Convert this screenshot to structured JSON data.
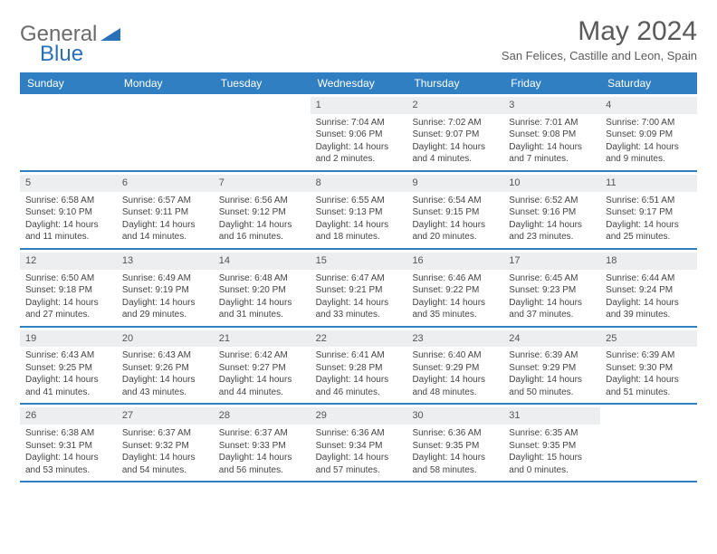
{
  "logo": {
    "part1": "General",
    "part2": "Blue"
  },
  "title": "May 2024",
  "location": "San Felices, Castille and Leon, Spain",
  "dayHeaders": [
    "Sunday",
    "Monday",
    "Tuesday",
    "Wednesday",
    "Thursday",
    "Friday",
    "Saturday"
  ],
  "colors": {
    "headerBg": "#2f7fc2",
    "headerText": "#ffffff",
    "rule": "#2f7fc2",
    "dayBg": "#eceeef",
    "logoGray": "#6b6b6b",
    "logoBlue": "#2870b8"
  },
  "weeks": [
    [
      {
        "empty": true
      },
      {
        "empty": true
      },
      {
        "empty": true
      },
      {
        "num": "1",
        "sunrise": "Sunrise: 7:04 AM",
        "sunset": "Sunset: 9:06 PM",
        "daylight": "Daylight: 14 hours and 2 minutes."
      },
      {
        "num": "2",
        "sunrise": "Sunrise: 7:02 AM",
        "sunset": "Sunset: 9:07 PM",
        "daylight": "Daylight: 14 hours and 4 minutes."
      },
      {
        "num": "3",
        "sunrise": "Sunrise: 7:01 AM",
        "sunset": "Sunset: 9:08 PM",
        "daylight": "Daylight: 14 hours and 7 minutes."
      },
      {
        "num": "4",
        "sunrise": "Sunrise: 7:00 AM",
        "sunset": "Sunset: 9:09 PM",
        "daylight": "Daylight: 14 hours and 9 minutes."
      }
    ],
    [
      {
        "num": "5",
        "sunrise": "Sunrise: 6:58 AM",
        "sunset": "Sunset: 9:10 PM",
        "daylight": "Daylight: 14 hours and 11 minutes."
      },
      {
        "num": "6",
        "sunrise": "Sunrise: 6:57 AM",
        "sunset": "Sunset: 9:11 PM",
        "daylight": "Daylight: 14 hours and 14 minutes."
      },
      {
        "num": "7",
        "sunrise": "Sunrise: 6:56 AM",
        "sunset": "Sunset: 9:12 PM",
        "daylight": "Daylight: 14 hours and 16 minutes."
      },
      {
        "num": "8",
        "sunrise": "Sunrise: 6:55 AM",
        "sunset": "Sunset: 9:13 PM",
        "daylight": "Daylight: 14 hours and 18 minutes."
      },
      {
        "num": "9",
        "sunrise": "Sunrise: 6:54 AM",
        "sunset": "Sunset: 9:15 PM",
        "daylight": "Daylight: 14 hours and 20 minutes."
      },
      {
        "num": "10",
        "sunrise": "Sunrise: 6:52 AM",
        "sunset": "Sunset: 9:16 PM",
        "daylight": "Daylight: 14 hours and 23 minutes."
      },
      {
        "num": "11",
        "sunrise": "Sunrise: 6:51 AM",
        "sunset": "Sunset: 9:17 PM",
        "daylight": "Daylight: 14 hours and 25 minutes."
      }
    ],
    [
      {
        "num": "12",
        "sunrise": "Sunrise: 6:50 AM",
        "sunset": "Sunset: 9:18 PM",
        "daylight": "Daylight: 14 hours and 27 minutes."
      },
      {
        "num": "13",
        "sunrise": "Sunrise: 6:49 AM",
        "sunset": "Sunset: 9:19 PM",
        "daylight": "Daylight: 14 hours and 29 minutes."
      },
      {
        "num": "14",
        "sunrise": "Sunrise: 6:48 AM",
        "sunset": "Sunset: 9:20 PM",
        "daylight": "Daylight: 14 hours and 31 minutes."
      },
      {
        "num": "15",
        "sunrise": "Sunrise: 6:47 AM",
        "sunset": "Sunset: 9:21 PM",
        "daylight": "Daylight: 14 hours and 33 minutes."
      },
      {
        "num": "16",
        "sunrise": "Sunrise: 6:46 AM",
        "sunset": "Sunset: 9:22 PM",
        "daylight": "Daylight: 14 hours and 35 minutes."
      },
      {
        "num": "17",
        "sunrise": "Sunrise: 6:45 AM",
        "sunset": "Sunset: 9:23 PM",
        "daylight": "Daylight: 14 hours and 37 minutes."
      },
      {
        "num": "18",
        "sunrise": "Sunrise: 6:44 AM",
        "sunset": "Sunset: 9:24 PM",
        "daylight": "Daylight: 14 hours and 39 minutes."
      }
    ],
    [
      {
        "num": "19",
        "sunrise": "Sunrise: 6:43 AM",
        "sunset": "Sunset: 9:25 PM",
        "daylight": "Daylight: 14 hours and 41 minutes."
      },
      {
        "num": "20",
        "sunrise": "Sunrise: 6:43 AM",
        "sunset": "Sunset: 9:26 PM",
        "daylight": "Daylight: 14 hours and 43 minutes."
      },
      {
        "num": "21",
        "sunrise": "Sunrise: 6:42 AM",
        "sunset": "Sunset: 9:27 PM",
        "daylight": "Daylight: 14 hours and 44 minutes."
      },
      {
        "num": "22",
        "sunrise": "Sunrise: 6:41 AM",
        "sunset": "Sunset: 9:28 PM",
        "daylight": "Daylight: 14 hours and 46 minutes."
      },
      {
        "num": "23",
        "sunrise": "Sunrise: 6:40 AM",
        "sunset": "Sunset: 9:29 PM",
        "daylight": "Daylight: 14 hours and 48 minutes."
      },
      {
        "num": "24",
        "sunrise": "Sunrise: 6:39 AM",
        "sunset": "Sunset: 9:29 PM",
        "daylight": "Daylight: 14 hours and 50 minutes."
      },
      {
        "num": "25",
        "sunrise": "Sunrise: 6:39 AM",
        "sunset": "Sunset: 9:30 PM",
        "daylight": "Daylight: 14 hours and 51 minutes."
      }
    ],
    [
      {
        "num": "26",
        "sunrise": "Sunrise: 6:38 AM",
        "sunset": "Sunset: 9:31 PM",
        "daylight": "Daylight: 14 hours and 53 minutes."
      },
      {
        "num": "27",
        "sunrise": "Sunrise: 6:37 AM",
        "sunset": "Sunset: 9:32 PM",
        "daylight": "Daylight: 14 hours and 54 minutes."
      },
      {
        "num": "28",
        "sunrise": "Sunrise: 6:37 AM",
        "sunset": "Sunset: 9:33 PM",
        "daylight": "Daylight: 14 hours and 56 minutes."
      },
      {
        "num": "29",
        "sunrise": "Sunrise: 6:36 AM",
        "sunset": "Sunset: 9:34 PM",
        "daylight": "Daylight: 14 hours and 57 minutes."
      },
      {
        "num": "30",
        "sunrise": "Sunrise: 6:36 AM",
        "sunset": "Sunset: 9:35 PM",
        "daylight": "Daylight: 14 hours and 58 minutes."
      },
      {
        "num": "31",
        "sunrise": "Sunrise: 6:35 AM",
        "sunset": "Sunset: 9:35 PM",
        "daylight": "Daylight: 15 hours and 0 minutes."
      },
      {
        "empty": true
      }
    ]
  ]
}
